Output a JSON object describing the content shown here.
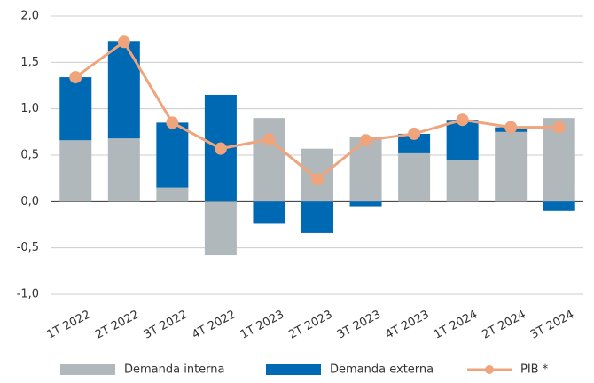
{
  "chart_data": {
    "type": "bar+line",
    "categories": [
      "1T 2022",
      "2T 2022",
      "3T 2022",
      "4T 2022",
      "1T 2023",
      "2T 2023",
      "3T 2023",
      "4T 2023",
      "1T 2024",
      "2T 2024",
      "3T 2024"
    ],
    "series": [
      {
        "name": "Demanda interna",
        "type": "bar",
        "color": "#b1b8bc",
        "values": [
          0.66,
          0.68,
          0.15,
          -0.58,
          0.9,
          0.57,
          0.7,
          0.52,
          0.45,
          0.75,
          0.9
        ]
      },
      {
        "name": "Demanda externa",
        "type": "bar",
        "color": "#0069b4",
        "values": [
          0.68,
          1.05,
          0.7,
          1.15,
          -0.24,
          -0.34,
          -0.05,
          0.21,
          0.43,
          0.05,
          -0.1
        ]
      },
      {
        "name": "PIB *",
        "type": "line",
        "color": "#f0a47c",
        "values": [
          1.34,
          1.72,
          0.85,
          0.57,
          0.67,
          0.24,
          0.66,
          0.73,
          0.88,
          0.8,
          0.8
        ]
      }
    ],
    "stacked": true,
    "ylim": [
      -1,
      2
    ],
    "yticks": [
      {
        "value": -1,
        "label": "-1,0"
      },
      {
        "value": -0.5,
        "label": "-0,5"
      },
      {
        "value": 0,
        "label": "0,0"
      },
      {
        "value": 0.5,
        "label": "0,5"
      },
      {
        "value": 1,
        "label": "1,0"
      },
      {
        "value": 1.5,
        "label": "1,5"
      },
      {
        "value": 2,
        "label": "2,0"
      }
    ],
    "grid": true,
    "legend": "bottom"
  }
}
